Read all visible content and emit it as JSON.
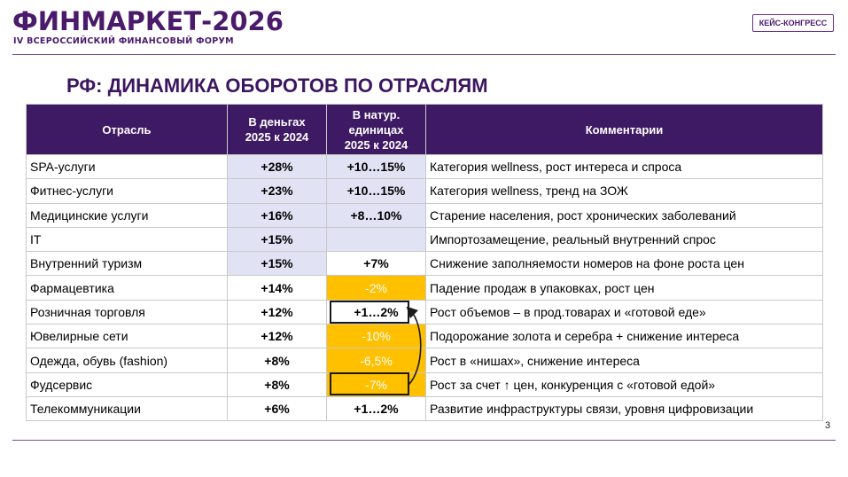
{
  "header": {
    "logo_title": "ФИНМАРКЕТ-2026",
    "logo_subtitle": "IV ВСЕРОССИЙСКИЙ ФИНАНСОВЫЙ ФОРУМ",
    "badge": "КЕЙС-КОНГРЕСС"
  },
  "slide": {
    "title": "РФ: ДИНАМИКА ОБОРОТОВ ПО ОТРАСЛЯМ",
    "page_number": "3"
  },
  "table": {
    "headers": {
      "industry": "Отрасль",
      "money_line1": "В деньгах",
      "money_line2": "2025 к 2024",
      "natural_line1": "В натур.",
      "natural_line2": "единицах",
      "natural_line3": "2025 к 2024",
      "comments": "Комментарии"
    },
    "rows": [
      {
        "industry": "SPA-услуги",
        "money": "+28%",
        "natural": "+10…15%",
        "comment": "Категория wellness, рост интереса и спроса"
      },
      {
        "industry": "Фитнес-услуги",
        "money": "+23%",
        "natural": "+10…15%",
        "comment": "Категория wellness, тренд на ЗОЖ"
      },
      {
        "industry": "Медицинские услуги",
        "money": "+16%",
        "natural": "+8…10%",
        "comment": "Старение населения, рост хронических заболеваний"
      },
      {
        "industry": "IT",
        "money": "+15%",
        "natural": "",
        "comment": "Импортозамещение, реальный внутренний спрос"
      },
      {
        "industry": "Внутренний туризм",
        "money": "+15%",
        "natural": "+7%",
        "comment": "Снижение заполняемости номеров на фоне роста цен"
      },
      {
        "industry": "Фармацевтика",
        "money": "+14%",
        "natural": "-2%",
        "comment": "Падение продаж в упаковках, рост цен"
      },
      {
        "industry": "Розничная торговля",
        "money": "+12%",
        "natural": "+1…2%",
        "comment": "Рост объемов – в прод.товарах и «готовой еде»"
      },
      {
        "industry": "Ювелирные сети",
        "money": "+12%",
        "natural": "-10%",
        "comment": "Подорожание золота и серебра + снижение интереса"
      },
      {
        "industry": "Одежда, обувь (fashion)",
        "money": "+8%",
        "natural": "-6,5%",
        "comment": "Рост в «нишах», снижение интереса"
      },
      {
        "industry": "Фудсервис",
        "money": "+8%",
        "natural": "-7%",
        "comment": "Рост за счет ↑ цен, конкуренция с «готовой едой»"
      },
      {
        "industry": "Телекоммуникации",
        "money": "+6%",
        "natural": "+1…2%",
        "comment": "Развитие инфраструктуры связи, уровня цифровизации"
      }
    ]
  },
  "colors": {
    "brand_purple": "#3d1a63",
    "highlight_blue": "#e1e3f4",
    "negative_orange": "#ffc000"
  }
}
